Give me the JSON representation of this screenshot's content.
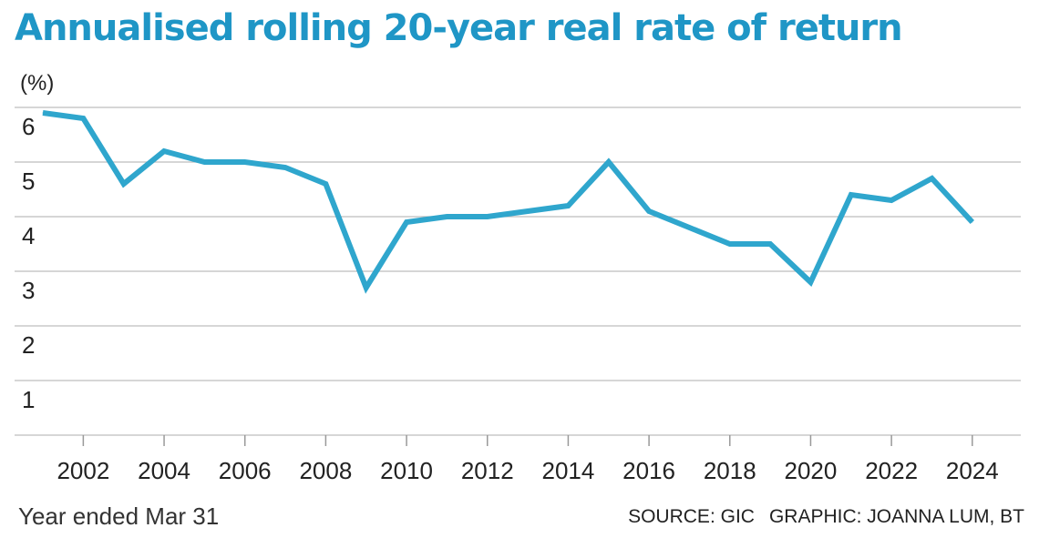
{
  "title": "Annualised rolling 20-year real rate of return",
  "ylabel": "(%)",
  "xnote": "Year ended Mar 31",
  "source": "SOURCE: GIC",
  "graphic": "GRAPHIC: JOANNA LUM, BT",
  "colors": {
    "title": "#1f96c6",
    "line": "#2fa6cd",
    "grid": "#bdbdbd"
  },
  "chart_data": {
    "type": "line",
    "title": "Annualised rolling 20-year real rate of return",
    "ylabel": "(%)",
    "xlabel": "Year ended Mar 31",
    "ylim": [
      0,
      6
    ],
    "xlim": [
      2000.3,
      2025.2
    ],
    "yticks": [
      1,
      2,
      3,
      4,
      5,
      6
    ],
    "xticks": [
      2002,
      2004,
      2006,
      2008,
      2010,
      2012,
      2014,
      2016,
      2018,
      2020,
      2022,
      2024
    ],
    "grid": true,
    "series": [
      {
        "x": [
          2001,
          2002,
          2003,
          2004,
          2005,
          2006,
          2007,
          2008,
          2009,
          2010,
          2011,
          2012,
          2013,
          2014,
          2015,
          2016,
          2017,
          2018,
          2019,
          2020,
          2021,
          2022,
          2023,
          2024
        ],
        "y": [
          5.9,
          5.8,
          4.6,
          5.2,
          5.0,
          5.0,
          4.9,
          4.6,
          2.7,
          3.9,
          4.0,
          4.0,
          4.1,
          4.2,
          5.0,
          4.1,
          3.8,
          3.5,
          3.5,
          2.8,
          4.4,
          4.3,
          4.7,
          3.9
        ]
      }
    ]
  }
}
